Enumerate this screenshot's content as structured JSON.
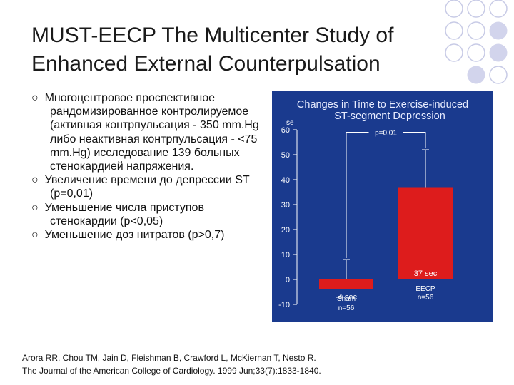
{
  "slide": {
    "title": "MUST-EECP The Multicenter Study of Enhanced External Counterpulsation",
    "bullets": [
      "Многоцентровое проспективное рандомизированное контролируемое (активная контрпульсация - 350 mm.Hg либо неактивная контрпульсация - <75 mm.Hg) исследование 139 больных стенокардией напряжения.",
      "Увеличение времени до депрессии ST (p=0,01)",
      "Уменьшение числа приступов стенокардии (p<0,05)",
      "Уменьшение доз нитратов (p>0,7)"
    ],
    "reference_line1": "Arora RR, Chou TM, Jain D, Fleishman B, Crawford L, McKiernan T, Nesto R.",
    "reference_line2": "The Journal of the American College of Cardiology. 1999 Jun;33(7):1833-1840."
  },
  "chart_data": {
    "type": "bar",
    "title_line1": "Changes in Time to Exercise-induced",
    "title_line2": "ST-segment Depression",
    "ylabel": "se",
    "ylim": [
      -10,
      60
    ],
    "yticks": [
      -10,
      0,
      10,
      20,
      30,
      40,
      50,
      60
    ],
    "categories": [
      "Sham n=56",
      "EECP n=56"
    ],
    "category_lines": [
      [
        "Sham",
        "n=56"
      ],
      [
        "EECP",
        "n=56"
      ]
    ],
    "values": [
      -4,
      37
    ],
    "value_labels": [
      "-4 sec",
      "37 sec"
    ],
    "error_upper": [
      8,
      52
    ],
    "annotation": "p=0.01",
    "colors": {
      "panel": "#1a3a8e",
      "bar": "#dd1c1c",
      "text": "#ffffff",
      "title": "#e8ecff"
    }
  }
}
